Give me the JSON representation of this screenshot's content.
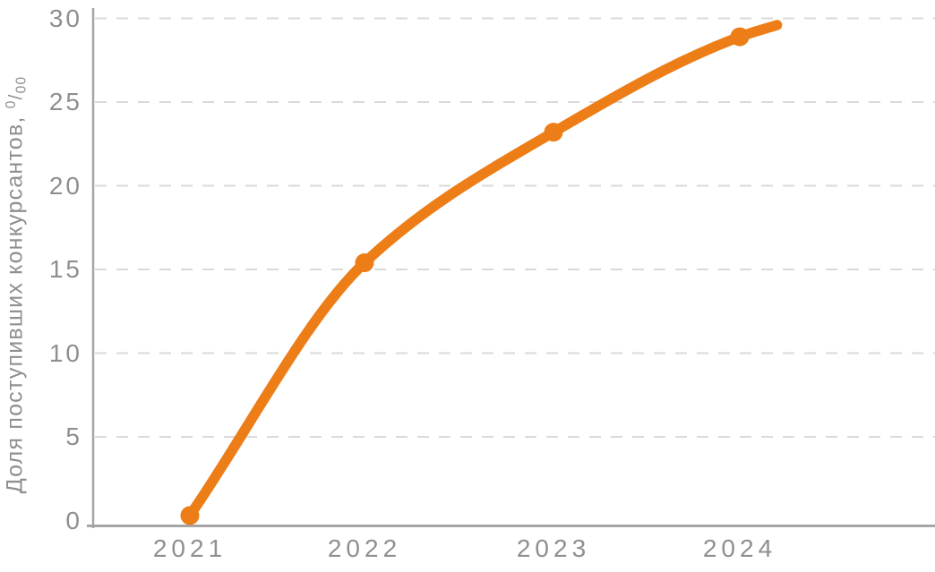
{
  "chart_data": {
    "type": "line",
    "title": "",
    "ylabel": "Доля поступивших конкурсантов, ⁰/₀₀",
    "ylabel_parts": {
      "text": "Доля поступивших конкурсантов,",
      "sup": "0",
      "slash": "/",
      "sub": "00"
    },
    "x": [
      2021,
      2022,
      2023,
      2024
    ],
    "xtick_labels": [
      "2021",
      "2022",
      "2023",
      "2024"
    ],
    "series": [
      {
        "name": "Доля поступивших конкурсантов, ‰",
        "values": [
          0.3,
          15.4,
          23.2,
          28.9
        ]
      }
    ],
    "line_tail_point": {
      "x": 2024.2,
      "y": 29.6
    },
    "ylim": [
      0,
      30
    ],
    "yticks": [
      0,
      5,
      10,
      15,
      20,
      25,
      30
    ],
    "ytick_labels": [
      "0",
      "5",
      "10",
      "15",
      "20",
      "25",
      "30"
    ],
    "grid": "horizontal-dashed",
    "legend": "none",
    "colors": {
      "line": "#ED7D17",
      "marker": "#ED7D17",
      "axis": "#A5A5A5",
      "grid": "#DADADA",
      "tick_text": "#8F8F8F"
    }
  }
}
